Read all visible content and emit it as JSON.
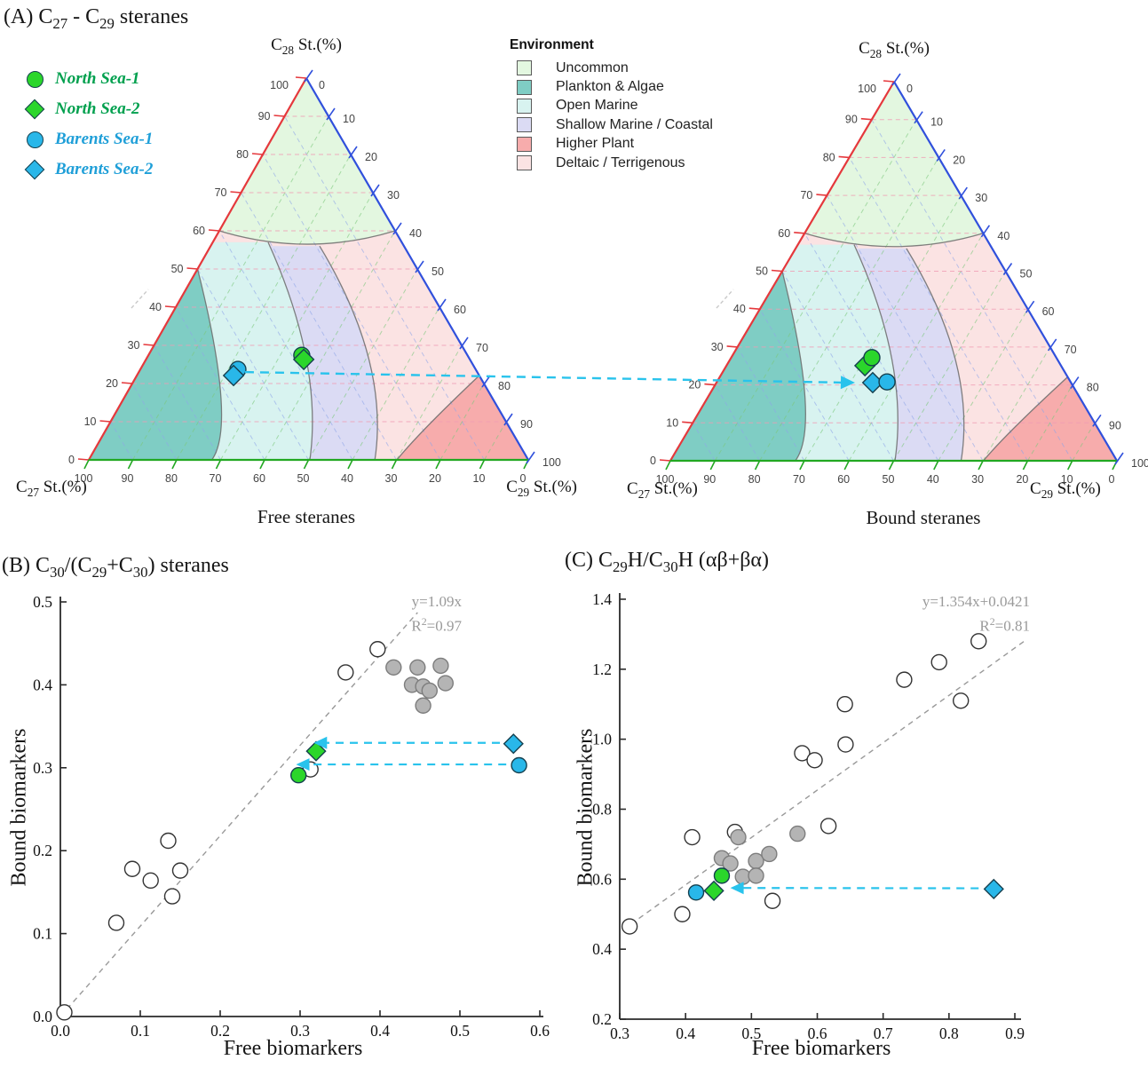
{
  "panel_a": {
    "title": "(A) C~27~ - C~29~ steranes",
    "sample_legend": [
      {
        "label": "North Sea-1",
        "marker": "circle",
        "color": "#2BD62B",
        "text_color": "#00A04E"
      },
      {
        "label": "North Sea-2",
        "marker": "diamond",
        "color": "#2BD62B",
        "text_color": "#00A04E"
      },
      {
        "label": "Barents Sea-1",
        "marker": "circle",
        "color": "#29B7E9",
        "text_color": "#1F9FD8"
      },
      {
        "label": "Barents Sea-2",
        "marker": "diamond",
        "color": "#29B7E9",
        "text_color": "#1F9FD8"
      }
    ],
    "env_legend": {
      "title": "Environment",
      "items": [
        {
          "label": "Uncommon",
          "color": "#E3F7E0"
        },
        {
          "label": "Plankton & Algae",
          "color": "#7FCDC4"
        },
        {
          "label": "Open Marine",
          "color": "#D8F3F0"
        },
        {
          "label": "Shallow Marine / Coastal",
          "color": "#DBDBF4"
        },
        {
          "label": "Higher Plant",
          "color": "#F7ACAC"
        },
        {
          "label": "Deltaic / Terrigenous",
          "color": "#FBE3E3"
        }
      ]
    },
    "zones": {
      "base": {
        "name": "Deltaic / Terrigenous",
        "fill": "#FBE3E3"
      },
      "bands": [
        {
          "name": "Shallow Marine / Coastal",
          "fill": "#DBDBF4",
          "p0": [
            0.192,
            0.56
          ],
          "c": [
            0.186,
            0.256
          ],
          "p2": [
            0.349,
            0
          ]
        },
        {
          "name": "Open Marine",
          "fill": "#D8F3F0",
          "p0": [
            0.304,
            0.57
          ],
          "c": [
            0.34,
            0.251
          ],
          "p2": [
            0.497,
            0
          ]
        },
        {
          "name": "Plankton & Algae",
          "fill": "#7FCDC4",
          "p0": [
            0.5,
            0.5
          ],
          "c": [
            0.617,
            0.091
          ],
          "p2": [
            0.72,
            0
          ]
        }
      ],
      "top": {
        "name": "Uncommon",
        "fill": "#E3F7E0",
        "p0": [
          0.4,
          0.6
        ],
        "c": [
          0.235,
          0.53
        ],
        "p2": [
          0,
          0.6
        ]
      },
      "corner": {
        "name": "Higher Plant",
        "fill": "#F7ACAC",
        "p0": [
          0.299,
          0
        ],
        "c": [
          0.212,
          0.072
        ],
        "p2": [
          0,
          0.221
        ]
      }
    },
    "arrow_color": "#29C3EC"
  },
  "chart_data": [
    {
      "id": "ternary-free",
      "type": "ternary",
      "title": "Free steranes",
      "axes": {
        "top": "C~28~ St.(%)",
        "bottom_left": "C~27~ St.(%)",
        "bottom_right": "C~29~ St.(%)"
      },
      "tick_step": 10,
      "tick_range": [
        0,
        100
      ],
      "points": [
        {
          "sample": "North Sea-1",
          "marker": "circle",
          "color": "#2BD62B",
          "c27": 37.7,
          "c28": 27.4,
          "c29": 34.9
        },
        {
          "sample": "North Sea-2",
          "marker": "diamond",
          "color": "#2BD62B",
          "c27": 37.8,
          "c28": 26.3,
          "c29": 35.9
        },
        {
          "sample": "Barents Sea-1",
          "marker": "circle",
          "color": "#29B7E9",
          "c27": 54.1,
          "c28": 23.7,
          "c29": 22.2
        },
        {
          "sample": "Barents Sea-2",
          "marker": "diamond",
          "color": "#29B7E9",
          "c27": 55.9,
          "c28": 22.1,
          "c29": 22.0
        }
      ]
    },
    {
      "id": "ternary-bound",
      "type": "ternary",
      "title": "Bound steranes",
      "axes": {
        "top": "C~28~ St.(%)",
        "bottom_left": "C~27~ St.(%)",
        "bottom_right": "C~29~ St.(%)"
      },
      "tick_step": 10,
      "tick_range": [
        0,
        100
      ],
      "points": [
        {
          "sample": "North Sea-2",
          "marker": "diamond",
          "color": "#2BD62B",
          "c27": 43.9,
          "c28": 25.1,
          "c29": 31.0
        },
        {
          "sample": "North Sea-1",
          "marker": "circle",
          "color": "#2BD62B",
          "c27": 41.3,
          "c28": 27.2,
          "c29": 31.5
        },
        {
          "sample": "Barents Sea-2",
          "marker": "diamond",
          "color": "#29B7E9",
          "c27": 44.4,
          "c28": 20.6,
          "c29": 35.0
        },
        {
          "sample": "Barents Sea-1",
          "marker": "circle",
          "color": "#29B7E9",
          "c27": 41.1,
          "c28": 20.8,
          "c29": 38.1
        }
      ]
    },
    {
      "id": "scatter-b",
      "type": "scatter",
      "title": "(B) C~30~/(C~29~+C~30~) steranes",
      "xlabel": "Free biomarkers",
      "ylabel": "Bound biomarkers",
      "xlim": [
        0,
        0.6
      ],
      "ylim": [
        0,
        0.5
      ],
      "xtick_step": 0.1,
      "ytick_step": 0.1,
      "fit": {
        "label": "y=1.09x",
        "r2_label": "R^2^=0.97",
        "slope": 1.09,
        "intercept": 0,
        "x_range": [
          0,
          0.447
        ]
      },
      "series": [
        {
          "name": "free-only-samples",
          "marker": "circle",
          "fill": "#FFFFFF",
          "points": [
            [
              0.005,
              0.005
            ],
            [
              0.07,
              0.113
            ],
            [
              0.09,
              0.178
            ],
            [
              0.113,
              0.164
            ],
            [
              0.135,
              0.212
            ],
            [
              0.14,
              0.145
            ],
            [
              0.15,
              0.176
            ],
            [
              0.313,
              0.298
            ],
            [
              0.357,
              0.415
            ],
            [
              0.397,
              0.443
            ]
          ]
        },
        {
          "name": "bound-samples",
          "marker": "circle",
          "fill": "#B4B4B4",
          "points": [
            [
              0.417,
              0.421
            ],
            [
              0.447,
              0.421
            ],
            [
              0.476,
              0.423
            ],
            [
              0.44,
              0.4
            ],
            [
              0.454,
              0.398
            ],
            [
              0.462,
              0.393
            ],
            [
              0.482,
              0.402
            ],
            [
              0.454,
              0.375
            ]
          ]
        },
        {
          "name": "North Sea-1",
          "marker": "circle",
          "fill": "#2BD62B",
          "points": [
            [
              0.298,
              0.291
            ]
          ]
        },
        {
          "name": "North Sea-2",
          "marker": "diamond",
          "fill": "#2BD62B",
          "points": [
            [
              0.32,
              0.32
            ]
          ]
        },
        {
          "name": "Barents Sea-1",
          "marker": "circle",
          "fill": "#29B7E9",
          "points": [
            [
              0.574,
              0.303
            ]
          ]
        },
        {
          "name": "Barents Sea-2",
          "marker": "diamond",
          "fill": "#29B7E9",
          "points": [
            [
              0.567,
              0.329
            ]
          ]
        }
      ],
      "arrows": [
        {
          "from": [
            0.55,
            0.33
          ],
          "to": [
            0.317,
            0.33
          ]
        },
        {
          "from": [
            0.558,
            0.304
          ],
          "to": [
            0.295,
            0.304
          ]
        }
      ]
    },
    {
      "id": "scatter-c",
      "type": "scatter",
      "title": "(C) C~29~H/C~30~H (αβ+βα)",
      "xlabel": "Free biomarkers",
      "ylabel": "Bound biomarkers",
      "xlim": [
        0.3,
        0.9
      ],
      "ylim": [
        0.2,
        1.4
      ],
      "xtick_step": 0.1,
      "ytick_step": 0.2,
      "fit": {
        "label": "y=1.354x+0.0421",
        "r2_label": "R^2^=0.81",
        "slope": 1.354,
        "intercept": 0.0421,
        "x_range": [
          0.305,
          0.915
        ]
      },
      "series": [
        {
          "name": "free-only-samples",
          "marker": "circle",
          "fill": "#FFFFFF",
          "points": [
            [
              0.315,
              0.465
            ],
            [
              0.395,
              0.5
            ],
            [
              0.41,
              0.72
            ],
            [
              0.475,
              0.735
            ],
            [
              0.532,
              0.538
            ],
            [
              0.617,
              0.752
            ],
            [
              0.577,
              0.96
            ],
            [
              0.596,
              0.94
            ],
            [
              0.643,
              0.985
            ],
            [
              0.642,
              1.1
            ],
            [
              0.732,
              1.17
            ],
            [
              0.785,
              1.22
            ],
            [
              0.845,
              1.28
            ],
            [
              0.818,
              1.11
            ]
          ]
        },
        {
          "name": "bound-samples",
          "marker": "circle",
          "fill": "#B4B4B4",
          "points": [
            [
              0.455,
              0.66
            ],
            [
              0.468,
              0.645
            ],
            [
              0.48,
              0.72
            ],
            [
              0.487,
              0.607
            ],
            [
              0.507,
              0.652
            ],
            [
              0.507,
              0.61
            ],
            [
              0.527,
              0.672
            ],
            [
              0.57,
              0.73
            ]
          ]
        },
        {
          "name": "North Sea-1",
          "marker": "circle",
          "fill": "#2BD62B",
          "points": [
            [
              0.455,
              0.61
            ]
          ]
        },
        {
          "name": "North Sea-2",
          "marker": "diamond",
          "fill": "#2BD62B",
          "points": [
            [
              0.443,
              0.567
            ]
          ]
        },
        {
          "name": "Barents Sea-1",
          "marker": "circle",
          "fill": "#29B7E9",
          "points": [
            [
              0.416,
              0.562
            ]
          ]
        },
        {
          "name": "Barents Sea-2",
          "marker": "diamond",
          "fill": "#29B7E9",
          "points": [
            [
              0.868,
              0.572
            ]
          ]
        }
      ],
      "arrows": [
        {
          "from": [
            0.845,
            0.574
          ],
          "to": [
            0.468,
            0.575
          ]
        }
      ]
    }
  ]
}
